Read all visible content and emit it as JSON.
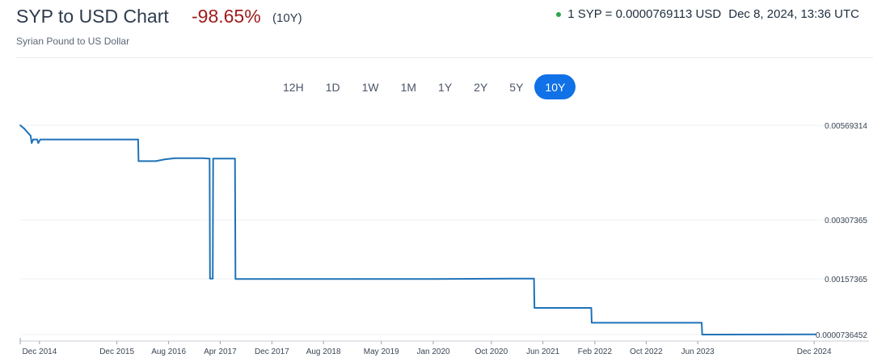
{
  "header": {
    "title": "SYP to USD Chart",
    "change": "-98.65%",
    "period": "(10Y)",
    "rate": "1 SYP = 0.0000769113 USD",
    "timestamp": "Dec 8, 2024, 13:36 UTC",
    "subtitle": "Syrian Pound to US Dollar",
    "change_color": "#9e1b1b",
    "live_color": "#2da44e"
  },
  "ranges": [
    {
      "label": "12H",
      "active": false
    },
    {
      "label": "1D",
      "active": false
    },
    {
      "label": "1W",
      "active": false
    },
    {
      "label": "1M",
      "active": false
    },
    {
      "label": "1Y",
      "active": false
    },
    {
      "label": "2Y",
      "active": false
    },
    {
      "label": "5Y",
      "active": false
    },
    {
      "label": "10Y",
      "active": true
    }
  ],
  "chart_data": {
    "type": "line",
    "title": "",
    "xlabel": "",
    "ylabel": "",
    "line_color": "#1f72b8",
    "accent_color": "#1171e6",
    "grid": true,
    "y_tick_labels": [
      "0.00569314",
      "0.00307365",
      "0.00157365",
      "0.0000736452"
    ],
    "y_tick_values": [
      0.00569314,
      0.00307365,
      0.00157365,
      7.36452e-05
    ],
    "x_tick_labels": [
      "Dec 2014",
      "Dec 2015",
      "Aug 2016",
      "Apr 2017",
      "Dec 2017",
      "Aug 2018",
      "May 2019",
      "Jan 2020",
      "Oct 2020",
      "Jun 2021",
      "Feb 2022",
      "Oct 2022",
      "Jun 2023",
      "Dec 2024"
    ],
    "x_tick_dates": [
      "2014-12-01",
      "2015-12-01",
      "2016-08-01",
      "2017-04-01",
      "2017-12-01",
      "2018-08-01",
      "2019-05-01",
      "2020-01-01",
      "2020-10-01",
      "2021-06-01",
      "2022-02-01",
      "2022-10-01",
      "2023-06-01",
      "2024-12-01"
    ],
    "xlim": [
      "2014-09-01",
      "2024-12-08"
    ],
    "ylim": [
      7.36452e-05,
      0.00569314
    ],
    "series": [
      {
        "points": [
          [
            "2014-09-01",
            0.00569314
          ],
          [
            "2014-09-20",
            0.0056
          ],
          [
            "2014-10-05",
            0.0055
          ],
          [
            "2014-10-20",
            0.0054
          ],
          [
            "2014-10-25",
            0.0052
          ],
          [
            "2014-11-01",
            0.0053
          ],
          [
            "2014-11-20",
            0.0053
          ],
          [
            "2014-11-25",
            0.0052
          ],
          [
            "2014-12-05",
            0.0053
          ],
          [
            "2015-12-01",
            0.0053
          ],
          [
            "2016-03-10",
            0.0053
          ],
          [
            "2016-03-12",
            0.0047
          ],
          [
            "2016-06-01",
            0.0047
          ],
          [
            "2016-07-15",
            0.00475
          ],
          [
            "2016-09-01",
            0.00478
          ],
          [
            "2017-01-10",
            0.00478
          ],
          [
            "2017-02-10",
            0.00477
          ],
          [
            "2017-02-12",
            0.00158
          ],
          [
            "2017-02-25",
            0.00158
          ],
          [
            "2017-02-27",
            0.00477
          ],
          [
            "2017-06-10",
            0.00477
          ],
          [
            "2017-06-12",
            0.00157
          ],
          [
            "2018-01-01",
            0.00157
          ],
          [
            "2019-01-01",
            0.00157
          ],
          [
            "2020-01-01",
            0.00157
          ],
          [
            "2021-04-20",
            0.00158
          ],
          [
            "2021-04-22",
            0.00079
          ],
          [
            "2022-01-15",
            0.00079
          ],
          [
            "2022-01-17",
            0.00039
          ],
          [
            "2023-06-20",
            0.00039
          ],
          [
            "2023-06-22",
            7.36452e-05
          ],
          [
            "2024-12-08",
            7.69113e-05
          ]
        ]
      }
    ]
  }
}
